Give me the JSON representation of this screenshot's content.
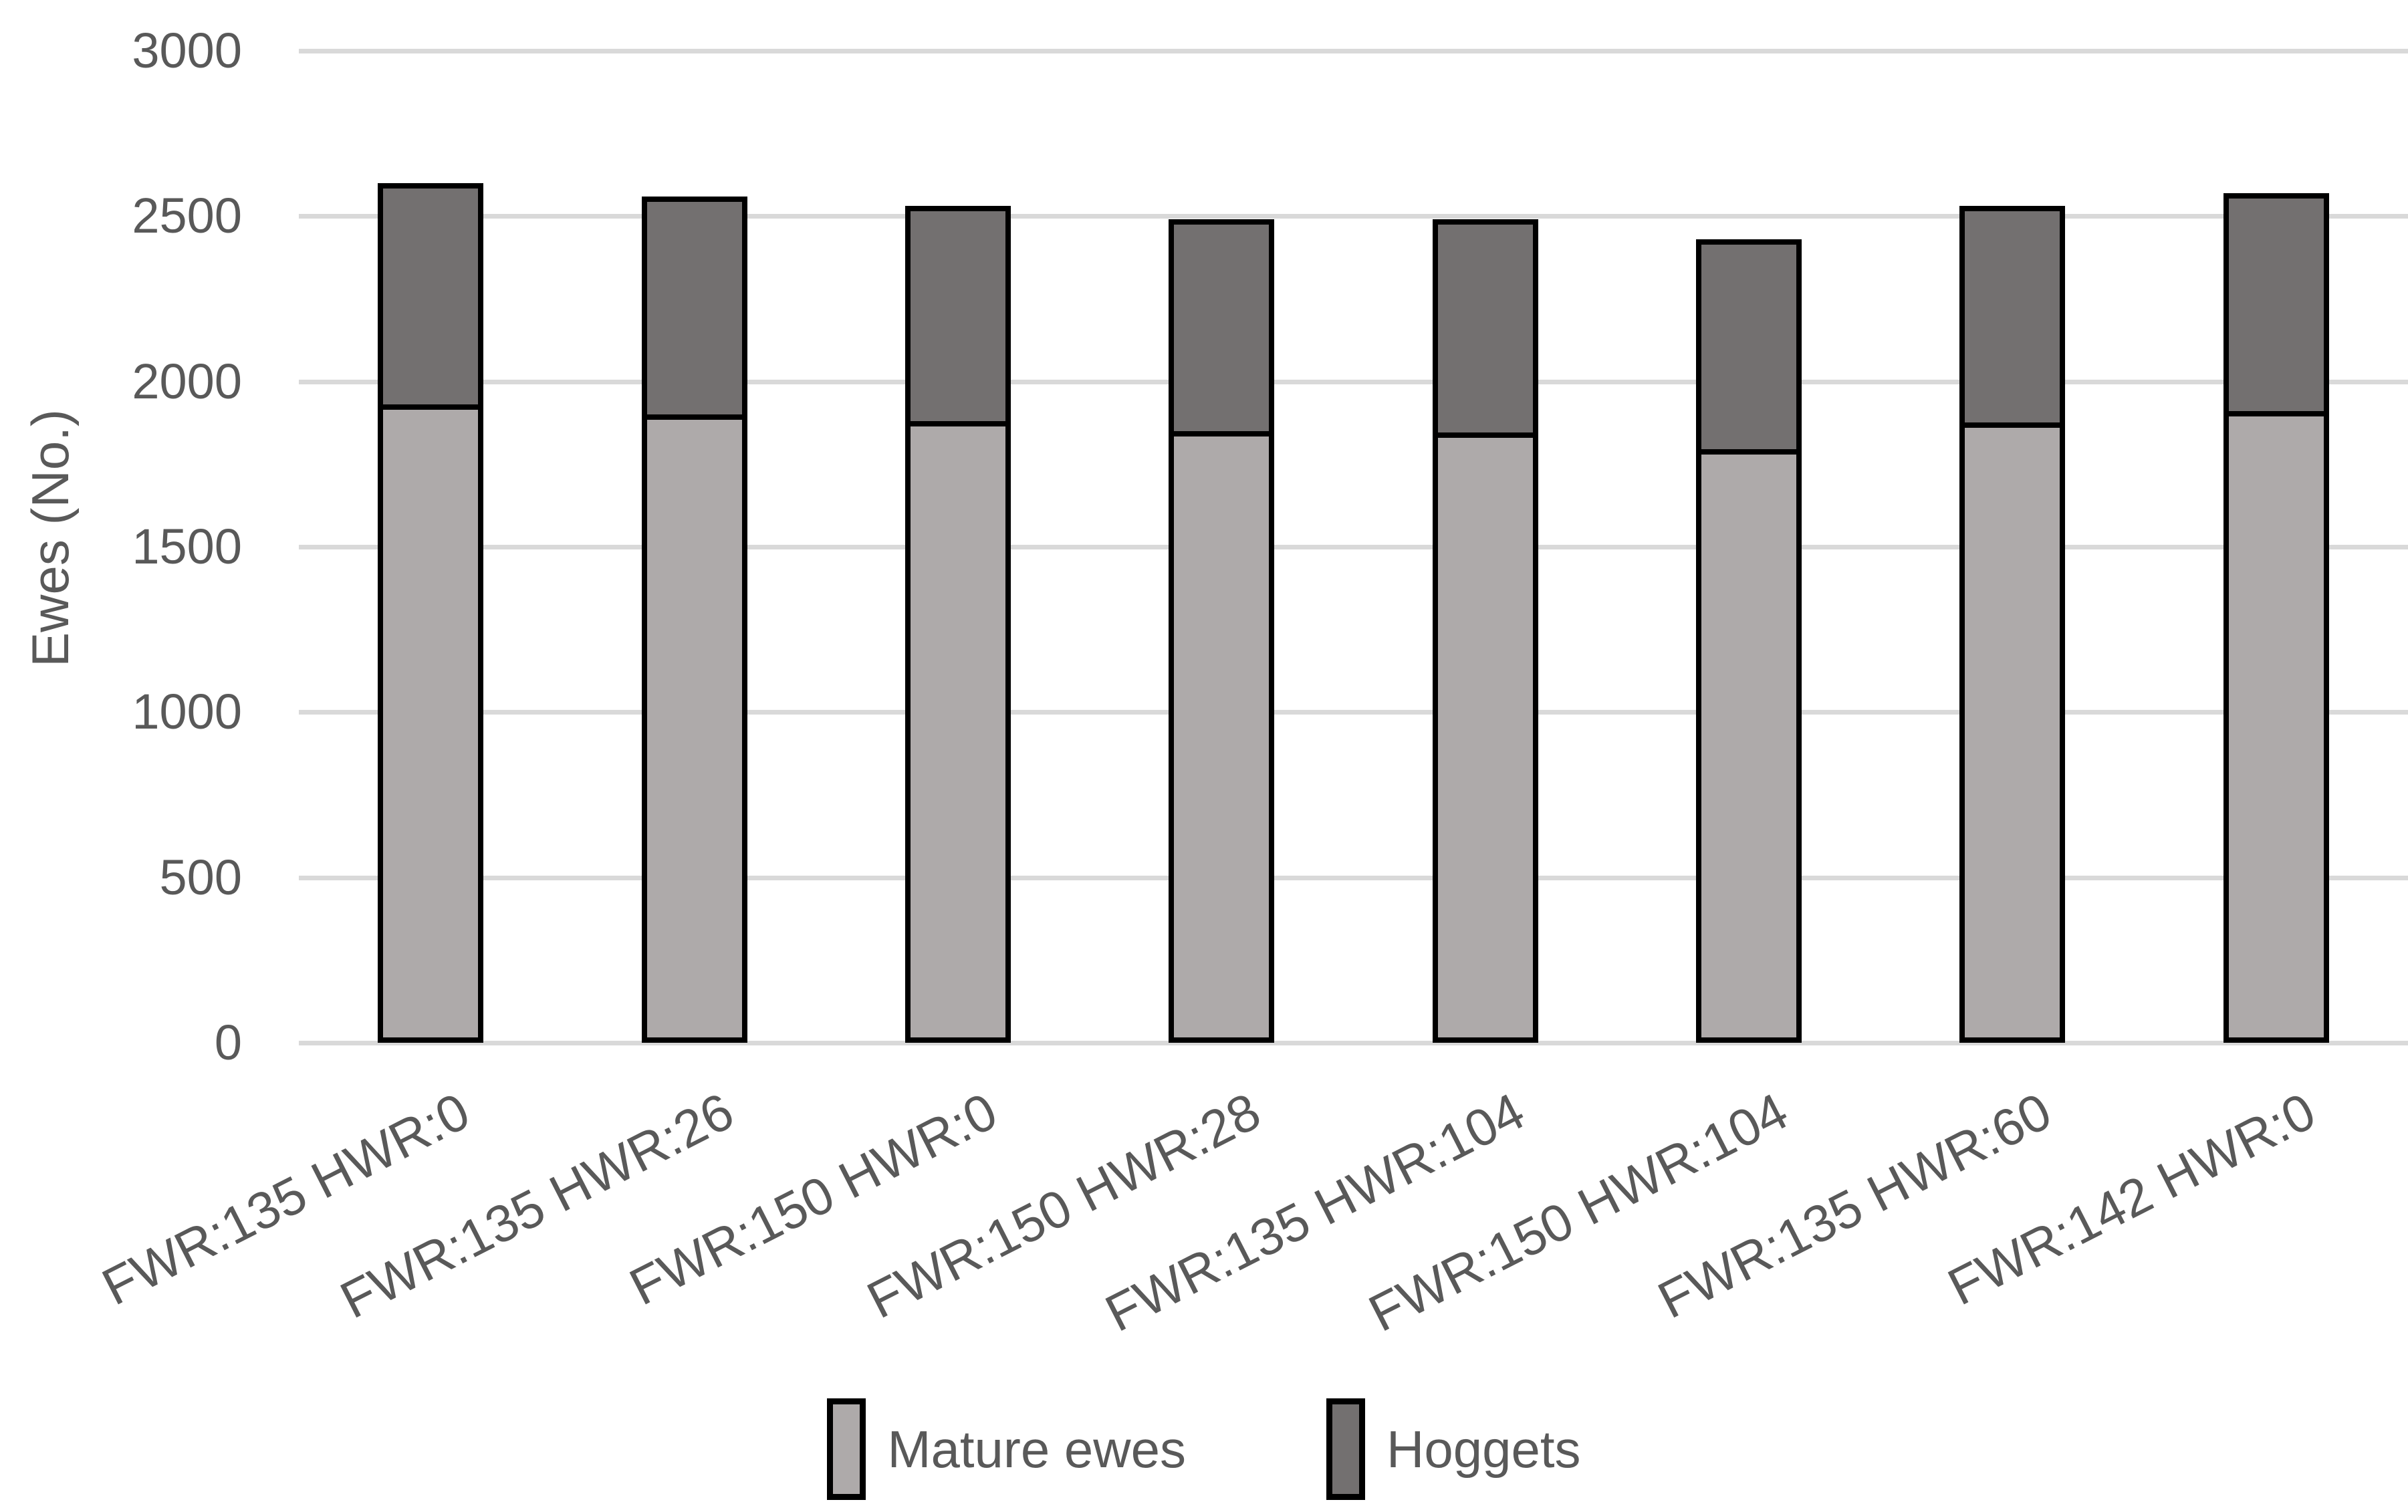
{
  "chart_data": {
    "type": "bar",
    "stacked": true,
    "title": "",
    "xlabel": "",
    "ylabel": "Ewes (No.)",
    "ylim": [
      0,
      3000
    ],
    "ytick_interval": 500,
    "yticks": [
      3000,
      2500,
      2000,
      1500,
      1000,
      500,
      0
    ],
    "grid": true,
    "legend_position": "bottom",
    "categories": [
      "FWR:135 HWR:0",
      "FWR:135 HWR:26",
      "FWR:150 HWR:0",
      "FWR:150 HWR:28",
      "FWR:135 HWR:104",
      "FWR:150 HWR:104",
      "FWR:135 HWR:60",
      "FWR:142 HWR:0"
    ],
    "series": [
      {
        "name": "Mature ewes",
        "color": "#AEAAAA",
        "values": [
          1930,
          1900,
          1880,
          1850,
          1845,
          1795,
          1875,
          1910
        ]
      },
      {
        "name": "Hoggets",
        "color": "#737070",
        "values": [
          670,
          660,
          650,
          640,
          645,
          635,
          655,
          660
        ]
      }
    ]
  },
  "colors": {
    "background": "#FFFFFF",
    "gridline": "#D9D9D9",
    "text": "#595959",
    "bar_border": "#000000"
  }
}
